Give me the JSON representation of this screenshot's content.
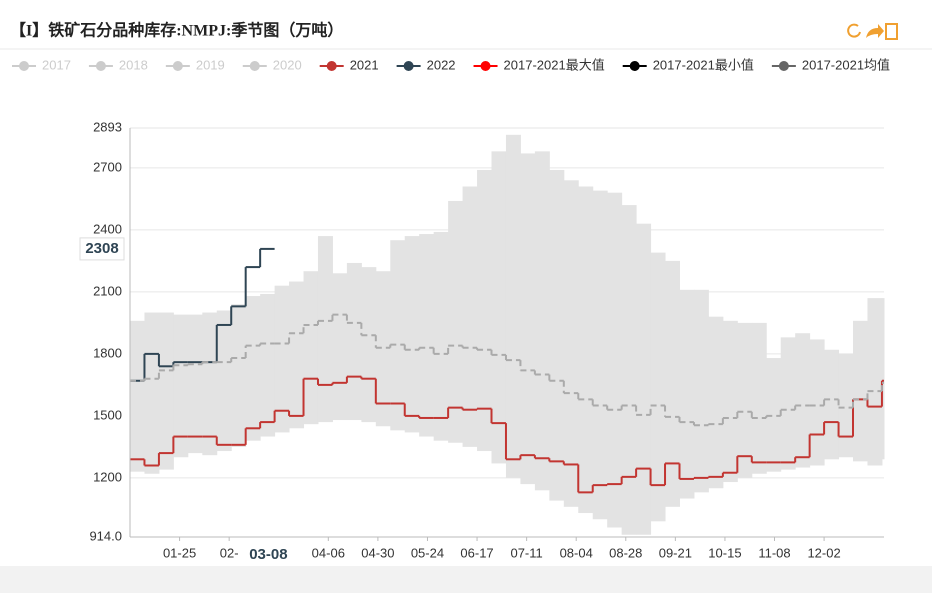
{
  "chart_data": {
    "type": "line",
    "step": true,
    "title": "【I】铁矿石分品种库存:NMPJ:季节图（万吨）",
    "x": [
      1,
      8,
      15,
      22,
      29,
      36,
      43,
      50,
      57,
      64,
      71,
      78,
      85,
      92,
      99,
      106,
      113,
      120,
      127,
      134,
      141,
      148,
      155,
      162,
      169,
      176,
      183,
      190,
      197,
      204,
      211,
      218,
      225,
      232,
      239,
      246,
      253,
      260,
      267,
      274,
      281,
      288,
      295,
      302,
      309,
      316,
      323,
      330,
      337,
      344,
      351,
      358,
      365
    ],
    "xlim": [
      1,
      366
    ],
    "xticks": [
      {
        "value": 25,
        "label": "01-25"
      },
      {
        "value": 49,
        "label": "02-"
      },
      {
        "value": 97,
        "label": "04-06"
      },
      {
        "value": 121,
        "label": "04-30"
      },
      {
        "value": 145,
        "label": "05-24"
      },
      {
        "value": 169,
        "label": "06-17"
      },
      {
        "value": 193,
        "label": "07-11"
      },
      {
        "value": 217,
        "label": "08-04"
      },
      {
        "value": 241,
        "label": "08-28"
      },
      {
        "value": 265,
        "label": "09-21"
      },
      {
        "value": 289,
        "label": "10-15"
      },
      {
        "value": 313,
        "label": "11-08"
      },
      {
        "value": 337,
        "label": "12-02"
      }
    ],
    "ylim": [
      914,
      2893
    ],
    "yticks": [
      {
        "value": 914,
        "label": "914.0"
      },
      1200,
      1500,
      1800,
      2100,
      2400,
      2700,
      2893
    ],
    "grid": true,
    "band_color": "#e3e3e3",
    "crosshair": {
      "x": {
        "value": 68,
        "label": "03-08"
      },
      "y": 2308
    },
    "series": [
      {
        "name": "2017",
        "color": "#c8c8c8",
        "hidden": true
      },
      {
        "name": "2018",
        "color": "#c8c8c8",
        "hidden": true
      },
      {
        "name": "2019",
        "color": "#c8c8c8",
        "hidden": true
      },
      {
        "name": "2020",
        "color": "#c8c8c8",
        "hidden": true
      },
      {
        "name": "2021",
        "color": "#c23531",
        "values": [
          1290,
          1260,
          1320,
          1400,
          1400,
          1400,
          1360,
          1360,
          1440,
          1470,
          1525,
          1500,
          1680,
          1650,
          1660,
          1690,
          1680,
          1560,
          1560,
          1500,
          1490,
          1490,
          1540,
          1530,
          1535,
          1465,
          1290,
          1310,
          1295,
          1280,
          1265,
          1130,
          1165,
          1170,
          1205,
          1245,
          1165,
          1270,
          1195,
          1200,
          1205,
          1225,
          1305,
          1275,
          1275,
          1275,
          1300,
          1410,
          1470,
          1400,
          1580,
          1545,
          1670
        ]
      },
      {
        "name": "2022",
        "color": "#2f4554",
        "values": [
          1670,
          1800,
          1740,
          1760,
          1760,
          1760,
          1940,
          2030,
          2220,
          2308,
          null,
          null,
          null,
          null,
          null,
          null,
          null,
          null,
          null,
          null,
          null,
          null,
          null,
          null,
          null,
          null,
          null,
          null,
          null,
          null,
          null,
          null,
          null,
          null,
          null,
          null,
          null,
          null,
          null,
          null,
          null,
          null,
          null,
          null,
          null,
          null,
          null,
          null,
          null,
          null,
          null,
          null,
          null
        ]
      },
      {
        "name": "2017-2021最大值",
        "color": "#ff0000",
        "band": "upper",
        "values": [
          1960,
          2000,
          2000,
          1990,
          1990,
          2000,
          2010,
          2040,
          2080,
          2090,
          2130,
          2150,
          2200,
          2370,
          2190,
          2240,
          2220,
          2200,
          2350,
          2370,
          2380,
          2390,
          2540,
          2610,
          2690,
          2780,
          2860,
          2770,
          2780,
          2690,
          2640,
          2610,
          2590,
          2580,
          2520,
          2430,
          2290,
          2250,
          2110,
          2110,
          1980,
          1960,
          1950,
          1950,
          1780,
          1880,
          1900,
          1870,
          1820,
          1800,
          1960,
          2070,
          2070
        ]
      },
      {
        "name": "2017-2021最小值",
        "color": "#000000",
        "band": "lower",
        "values": [
          1230,
          1220,
          1240,
          1300,
          1320,
          1310,
          1330,
          1350,
          1380,
          1400,
          1420,
          1440,
          1460,
          1470,
          1480,
          1480,
          1470,
          1450,
          1430,
          1420,
          1400,
          1380,
          1370,
          1350,
          1330,
          1270,
          1200,
          1170,
          1140,
          1090,
          1060,
          1030,
          1000,
          960,
          925,
          925,
          990,
          1060,
          1100,
          1130,
          1150,
          1180,
          1200,
          1220,
          1230,
          1240,
          1250,
          1260,
          1290,
          1300,
          1280,
          1260,
          1290
        ]
      },
      {
        "name": "2017-2021均值",
        "color": "#666666",
        "line_color": "#aaaaaa",
        "dash": true,
        "values": [
          1670,
          1680,
          1720,
          1745,
          1750,
          1760,
          1760,
          1780,
          1840,
          1850,
          1850,
          1900,
          1940,
          1960,
          1990,
          1950,
          1890,
          1830,
          1845,
          1820,
          1830,
          1800,
          1840,
          1830,
          1820,
          1795,
          1770,
          1720,
          1700,
          1670,
          1610,
          1580,
          1550,
          1530,
          1550,
          1505,
          1550,
          1495,
          1470,
          1455,
          1460,
          1490,
          1520,
          1490,
          1500,
          1530,
          1550,
          1550,
          1580,
          1540,
          1580,
          1620,
          1660
        ]
      }
    ]
  }
}
